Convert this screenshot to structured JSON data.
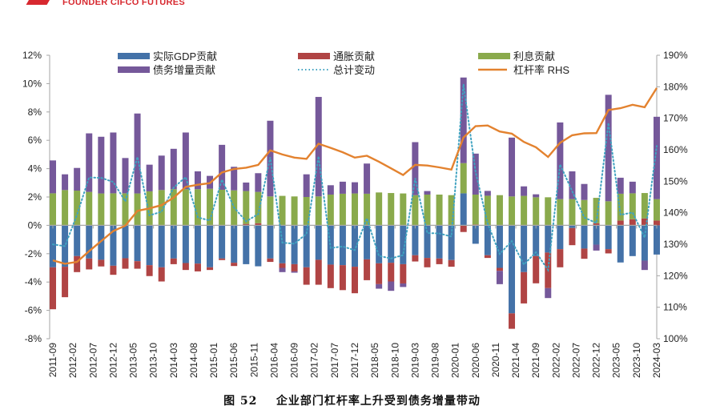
{
  "header": {
    "brand": "FOUNDER CIFCO FUTURES"
  },
  "caption": {
    "figure_no": "图 52",
    "title": "企业部门杠杆率上升受到债务增量带动"
  },
  "colors": {
    "gdp": "#4472a8",
    "inflation": "#b04444",
    "interest": "#8aaa4c",
    "debt": "#75589a",
    "total": "#3fa2c0",
    "leverage": "#e3822f",
    "axis": "#a6a6a6"
  },
  "chart_data": {
    "type": "bar",
    "stacked": true,
    "title": "",
    "legend_position": "top",
    "left_axis": {
      "min": -8,
      "max": 12,
      "step": 2,
      "unit": "%",
      "ticks": [
        "-8%",
        "-6%",
        "-4%",
        "-2%",
        "0%",
        "2%",
        "4%",
        "6%",
        "8%",
        "10%",
        "12%"
      ]
    },
    "right_axis": {
      "min": 100,
      "max": 190,
      "step": 10,
      "unit": "%",
      "ticks": [
        "100%",
        "110%",
        "120%",
        "130%",
        "140%",
        "150%",
        "160%",
        "170%",
        "180%",
        "190%"
      ]
    },
    "x_start": "2011-09",
    "x_frequency": "quarterly",
    "x_tick_labels": [
      "2011-09",
      "2012-02",
      "2012-07",
      "2012-12",
      "2013-05",
      "2013-10",
      "2014-03",
      "2014-08",
      "2015-01",
      "2015-06",
      "2015-11",
      "2016-04",
      "2016-09",
      "2017-02",
      "2017-07",
      "2017-12",
      "2018-05",
      "2018-10",
      "2019-03",
      "2019-08",
      "2020-01",
      "2020-06",
      "2020-11",
      "2021-04",
      "2021-09",
      "2022-02",
      "2022-07",
      "2022-12",
      "2023-05",
      "2023-10",
      "2024-03"
    ],
    "series": [
      {
        "name": "实际GDP贡献",
        "kind": "bar",
        "color_key": "gdp",
        "values": [
          -2.96,
          -2.92,
          -2.17,
          -2.34,
          -2.43,
          -2.85,
          -2.32,
          -2.53,
          -2.81,
          -2.96,
          -2.34,
          -2.66,
          -2.7,
          -2.96,
          -2.34,
          -2.64,
          -2.74,
          -2.89,
          -2.34,
          -2.68,
          -2.74,
          -2.96,
          -2.43,
          -2.77,
          -2.81,
          -2.92,
          -2.4,
          -2.68,
          -2.64,
          -2.74,
          -2.11,
          -2.3,
          -2.34,
          -2.45,
          2.26,
          -1.3,
          -2.11,
          -3.0,
          -6.21,
          -3.3,
          -2.17,
          -1.92,
          -1.68,
          -0.19,
          -1.64,
          -1.36,
          -1.68,
          -2.62,
          -2.17,
          -2.49,
          -2.06
        ]
      },
      {
        "name": "通胀贡献",
        "kind": "bar",
        "color_key": "inflation",
        "values": [
          -2.96,
          -2.15,
          -1.13,
          -0.77,
          -0.47,
          -0.64,
          -0.74,
          -0.53,
          -0.77,
          -1.0,
          -0.4,
          -0.49,
          -0.55,
          -0.19,
          -0.11,
          -0.23,
          0.1,
          0.15,
          -0.24,
          -0.32,
          -0.51,
          -1.23,
          -1.76,
          -1.66,
          -1.76,
          -1.87,
          -1.47,
          -1.47,
          -1.32,
          -1.36,
          -0.44,
          -0.66,
          -0.4,
          -0.47,
          -0.47,
          0.06,
          -0.19,
          -0.21,
          -1.09,
          -2.21,
          -1.92,
          -2.51,
          -1.28,
          -1.21,
          -0.72,
          0.15,
          -0.3,
          0.34,
          0.43,
          0.49,
          0.34
        ]
      },
      {
        "name": "利息贡献",
        "kind": "bar",
        "color_key": "interest",
        "values": [
          2.26,
          2.49,
          2.45,
          2.36,
          2.25,
          2.26,
          2.26,
          2.25,
          2.4,
          2.49,
          2.55,
          2.55,
          2.55,
          2.58,
          2.51,
          2.47,
          2.32,
          2.21,
          2.04,
          2.08,
          2.04,
          2.0,
          2.04,
          2.17,
          2.23,
          2.25,
          2.23,
          2.32,
          2.28,
          2.25,
          2.13,
          2.17,
          2.17,
          2.13,
          2.13,
          2.11,
          2.09,
          2.13,
          2.04,
          2.08,
          1.98,
          1.98,
          1.85,
          1.85,
          1.79,
          1.79,
          1.7,
          1.89,
          1.83,
          1.79,
          1.51
        ]
      },
      {
        "name": "债务增量贡献",
        "kind": "bar",
        "color_key": "debt",
        "values": [
          2.32,
          1.11,
          1.6,
          4.13,
          4.0,
          4.29,
          2.49,
          5.64,
          1.88,
          2.43,
          2.85,
          4.0,
          1.26,
          0.91,
          3.17,
          1.66,
          0.6,
          1.32,
          5.34,
          -0.3,
          -0.09,
          1.6,
          7.02,
          0.66,
          0.85,
          0.79,
          2.13,
          -0.32,
          -0.66,
          -0.25,
          3.74,
          0.25,
          0,
          0,
          6.04,
          2.89,
          0.34,
          -0.94,
          4.15,
          0.67,
          0.21,
          -0.7,
          5.41,
          1.96,
          1.13,
          -0.42,
          7.51,
          1.13,
          0.82,
          -0.66,
          5.81
        ]
      },
      {
        "name": "总计变动",
        "kind": "dotted-line",
        "color_key": "total",
        "values": [
          -1.34,
          -1.47,
          0.75,
          3.38,
          3.35,
          3.06,
          1.69,
          4.83,
          0.7,
          0.96,
          2.66,
          3.4,
          0.56,
          0.34,
          3.23,
          1.26,
          0.28,
          0.79,
          4.8,
          -1.22,
          -1.3,
          -0.59,
          4.87,
          -1.6,
          -1.49,
          -1.75,
          0.49,
          -2.15,
          -2.34,
          -2.1,
          3.32,
          -0.54,
          -0.57,
          -0.79,
          9.96,
          3.76,
          0.13,
          -2.02,
          -1.11,
          -2.76,
          -1.9,
          -3.15,
          4.3,
          2.41,
          0.56,
          0.16,
          7.23,
          0.74,
          0.91,
          -0.87,
          5.6
        ]
      },
      {
        "name": "杠杆率 RHS",
        "kind": "line",
        "axis": "right",
        "color_key": "leverage",
        "values": [
          124.9,
          123.8,
          124.4,
          127.8,
          131.0,
          134.2,
          135.9,
          140.6,
          141.4,
          142.4,
          144.8,
          148.2,
          148.9,
          149.4,
          152.8,
          153.9,
          154.3,
          155.2,
          159.8,
          158.5,
          157.5,
          157.1,
          161.9,
          160.6,
          159.2,
          157.5,
          158.1,
          156.2,
          154.1,
          152.0,
          155.2,
          155.0,
          154.4,
          153.7,
          163.9,
          167.5,
          167.7,
          165.8,
          165.1,
          162.5,
          160.8,
          157.7,
          162.2,
          164.6,
          165.2,
          165.3,
          172.6,
          173.2,
          174.3,
          173.5,
          179.6
        ]
      }
    ]
  }
}
